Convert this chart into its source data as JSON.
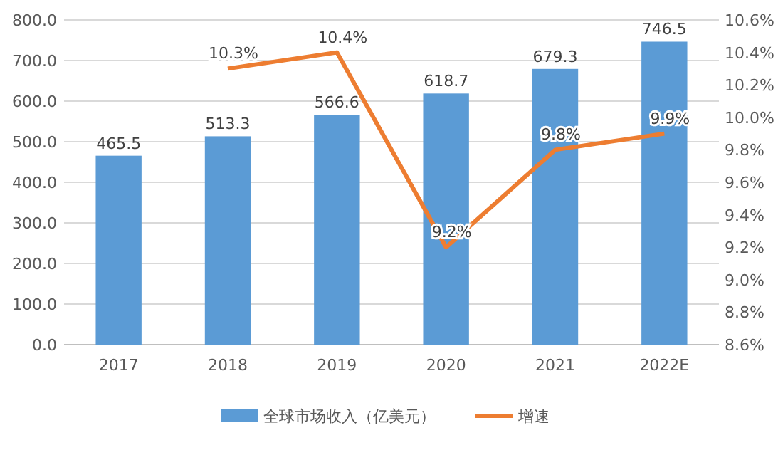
{
  "chart_data": {
    "type": "bar",
    "categories": [
      "2017",
      "2018",
      "2019",
      "2020",
      "2021",
      "2022E"
    ],
    "series": [
      {
        "name": "全球市场收入（亿美元）",
        "color": "#5b9bd5",
        "values": [
          465.5,
          513.3,
          566.6,
          618.7,
          679.3,
          746.5
        ],
        "value_labels": [
          "465.5",
          "513.3",
          "566.6",
          "618.7",
          "679.3",
          "746.5"
        ]
      },
      {
        "name": "增速",
        "type": "line",
        "axis": "y2",
        "color": "#ed7d31",
        "values": [
          null,
          10.3,
          10.4,
          9.2,
          9.8,
          9.9
        ],
        "value_labels": [
          null,
          "10.3%",
          "10.4%",
          "9.2%",
          "9.8%",
          "9.9%"
        ]
      }
    ],
    "ylim": [
      0,
      800
    ],
    "yticks": [
      {
        "value": 0,
        "label": "0.0"
      },
      {
        "value": 100,
        "label": "100.0"
      },
      {
        "value": 200,
        "label": "200.0"
      },
      {
        "value": 300,
        "label": "300.0"
      },
      {
        "value": 400,
        "label": "400.0"
      },
      {
        "value": 500,
        "label": "500.0"
      },
      {
        "value": 600,
        "label": "600.0"
      },
      {
        "value": 700,
        "label": "700.0"
      },
      {
        "value": 800,
        "label": "800.0"
      }
    ],
    "y2lim": [
      8.6,
      10.6
    ],
    "y2ticks": [
      {
        "value": 8.6,
        "label": "8.6%"
      },
      {
        "value": 8.8,
        "label": "8.8%"
      },
      {
        "value": 9.0,
        "label": "9.0%"
      },
      {
        "value": 9.2,
        "label": "9.2%"
      },
      {
        "value": 9.4,
        "label": "9.4%"
      },
      {
        "value": 9.6,
        "label": "9.6%"
      },
      {
        "value": 9.8,
        "label": "9.8%"
      },
      {
        "value": 10.0,
        "label": "10.0%"
      },
      {
        "value": 10.2,
        "label": "10.2%"
      },
      {
        "value": 10.4,
        "label": "10.4%"
      },
      {
        "value": 10.6,
        "label": "10.6%"
      }
    ],
    "grid": "y",
    "legend": "bottom"
  }
}
